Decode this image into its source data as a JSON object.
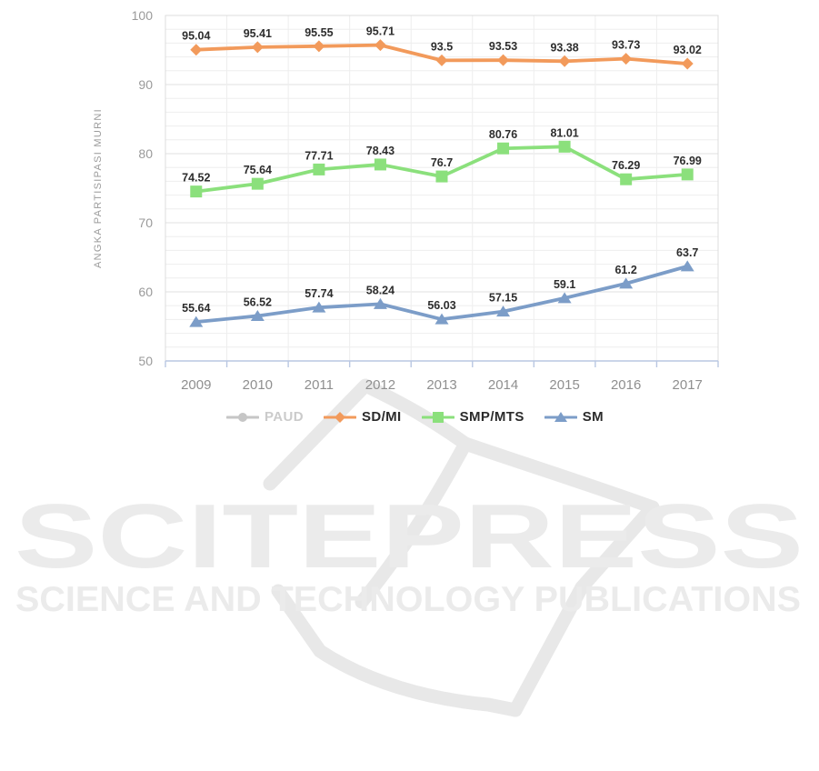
{
  "chart_data": {
    "type": "line",
    "title": "",
    "xlabel": "",
    "ylabel": "ANGKA PARTISIPASI MURNI",
    "ylim": [
      50,
      100
    ],
    "y_ticks": [
      50,
      60,
      70,
      80,
      90,
      100
    ],
    "minor_grid_step": 2,
    "grid": true,
    "legend_position": "bottom",
    "categories": [
      "2009",
      "2010",
      "2011",
      "2012",
      "2013",
      "2014",
      "2015",
      "2016",
      "2017"
    ],
    "series": [
      {
        "name": "PAUD",
        "color": "#c6c6c6",
        "marker": "circle",
        "hidden": true,
        "values": [],
        "labels": []
      },
      {
        "name": "SD/MI",
        "color": "#f29a5b",
        "marker": "diamond",
        "hidden": false,
        "values": [
          95.04,
          95.41,
          95.55,
          95.71,
          93.5,
          93.53,
          93.38,
          93.73,
          93.02
        ],
        "labels": [
          "95.04",
          "95.41",
          "95.55",
          "95.71",
          "93.5",
          "93.53",
          "93.38",
          "93.73",
          "93.02"
        ]
      },
      {
        "name": "SMP/MTS",
        "color": "#8be07c",
        "marker": "square",
        "hidden": false,
        "values": [
          74.52,
          75.64,
          77.71,
          78.43,
          76.7,
          80.76,
          81.01,
          76.29,
          76.99
        ],
        "labels": [
          "74.52",
          "75.64",
          "77.71",
          "78.43",
          "76.7",
          "80.76",
          "81.01",
          "76.29",
          "76.99"
        ]
      },
      {
        "name": "SM",
        "color": "#7c9dc8",
        "marker": "triangle",
        "hidden": false,
        "values": [
          55.64,
          56.52,
          57.74,
          58.24,
          56.03,
          57.15,
          59.1,
          61.2,
          63.7
        ],
        "labels": [
          "55.64",
          "56.52",
          "57.74",
          "58.24",
          "56.03",
          "57.15",
          "59.1",
          "61.2",
          "63.7"
        ]
      }
    ]
  },
  "colors": {
    "axis_text": "#9a9a9a",
    "x_tick_text": "#8f8f8f",
    "data_label_text": "#2d2d2d",
    "grid_minor": "#eeeeee",
    "grid_major": "#e2e2e2",
    "plot_border": "#dcdcdc",
    "x_axis_line": "#b9c7e2"
  },
  "watermark": {
    "title": "SCITEPRESS",
    "subtitle": "SCIENCE AND TECHNOLOGY PUBLICATIONS",
    "text_color": "#ebebeb",
    "shape_color": "#e8e8e8"
  }
}
